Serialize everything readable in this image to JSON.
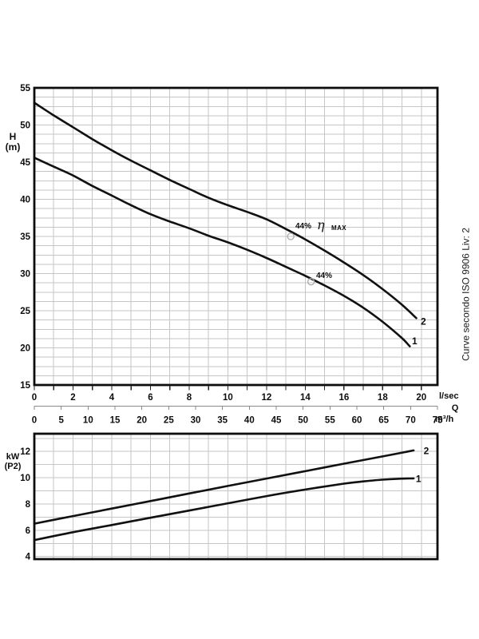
{
  "iso_note": "Curve secondo ISO 9906 Liv: 2",
  "head_chart": {
    "y_title_1": "H",
    "y_title_2": "(m)",
    "x_unit_primary": "l/sec",
    "x_quantity": "Q",
    "x_unit_secondary": "m³/h",
    "annotations": {
      "eff2_value": "44%",
      "eff2_symbol": "η",
      "eff2_suffix": "MAX",
      "eff1_value": "44%"
    }
  },
  "power_chart": {
    "y_title_1": "kW",
    "y_title_2": "(P2)"
  },
  "colors": {
    "curve": "#111111",
    "grid": "#c6c6c6",
    "border": "#0d0d0d",
    "marker": "#ababab",
    "ruler": "#8a8a8a"
  },
  "chart_data": [
    {
      "type": "line",
      "ylabel": "H (m)",
      "ylim": [
        15,
        55
      ],
      "y_ticks": [
        55,
        50,
        45,
        40,
        35,
        30,
        25,
        20,
        15
      ],
      "y_grid": {
        "start": 16.25,
        "step": 1.25,
        "end": 53.75
      },
      "x_unit": "l/sec",
      "x_quantity": "Q",
      "x_unit_secondary": "m³/h",
      "xlim_lsec": [
        0,
        20.833
      ],
      "x_ticks_lsec": [
        0,
        2,
        4,
        6,
        8,
        10,
        12,
        14,
        16,
        18,
        20
      ],
      "x_ticks_m3h": [
        0,
        5,
        10,
        15,
        20,
        25,
        30,
        35,
        40,
        45,
        50,
        55,
        60,
        65,
        70,
        75
      ],
      "grid": true,
      "series": [
        {
          "name": "1",
          "points": [
            [
              0,
              45.6
            ],
            [
              1,
              44.4
            ],
            [
              2,
              43.2
            ],
            [
              3,
              41.8
            ],
            [
              4,
              40.5
            ],
            [
              5,
              39.2
            ],
            [
              6,
              38.0
            ],
            [
              7,
              37.0
            ],
            [
              8,
              36.1
            ],
            [
              9,
              35.1
            ],
            [
              10,
              34.2
            ],
            [
              11,
              33.2
            ],
            [
              12,
              32.1
            ],
            [
              13,
              30.9
            ],
            [
              14,
              29.7
            ],
            [
              15,
              28.4
            ],
            [
              16,
              27.0
            ],
            [
              17,
              25.4
            ],
            [
              18,
              23.5
            ],
            [
              19,
              21.3
            ],
            [
              19.4,
              20.2
            ]
          ],
          "label_at": [
            19.35,
            20.9
          ]
        },
        {
          "name": "2",
          "points": [
            [
              0,
              53.0
            ],
            [
              1,
              51.3
            ],
            [
              2,
              49.7
            ],
            [
              3,
              48.1
            ],
            [
              4,
              46.6
            ],
            [
              5,
              45.2
            ],
            [
              6,
              43.9
            ],
            [
              7,
              42.6
            ],
            [
              8,
              41.4
            ],
            [
              9,
              40.2
            ],
            [
              10,
              39.2
            ],
            [
              11,
              38.3
            ],
            [
              12,
              37.3
            ],
            [
              13,
              36.0
            ],
            [
              14,
              34.6
            ],
            [
              15,
              33.1
            ],
            [
              16,
              31.5
            ],
            [
              17,
              29.8
            ],
            [
              18,
              27.9
            ],
            [
              19,
              25.8
            ],
            [
              19.74,
              24.0
            ]
          ],
          "label_at": [
            19.8,
            23.55
          ]
        }
      ],
      "annotations": [
        {
          "series": "2",
          "at": [
            13.25,
            35.0
          ],
          "label": "44% η MAX"
        },
        {
          "series": "1",
          "at": [
            14.3,
            28.9
          ],
          "label": "44%"
        }
      ]
    },
    {
      "type": "line",
      "ylabel": "kW (P2)",
      "ylim": [
        3.8,
        13.35
      ],
      "y_ticks": [
        12,
        10,
        8,
        6,
        4
      ],
      "y_grid": {
        "start": 4,
        "step": 1,
        "end": 13
      },
      "xlim_lsec": [
        0,
        20.833
      ],
      "grid": true,
      "series": [
        {
          "name": "1",
          "points": [
            [
              0,
              5.25
            ],
            [
              2,
              5.85
            ],
            [
              4,
              6.4
            ],
            [
              6,
              6.95
            ],
            [
              8,
              7.5
            ],
            [
              10,
              8.05
            ],
            [
              12,
              8.6
            ],
            [
              14,
              9.1
            ],
            [
              16,
              9.55
            ],
            [
              17,
              9.72
            ],
            [
              18,
              9.85
            ],
            [
              19,
              9.93
            ],
            [
              19.6,
              9.95
            ]
          ],
          "label_at": [
            19.55,
            9.9
          ]
        },
        {
          "name": "2",
          "points": [
            [
              0,
              6.5
            ],
            [
              2,
              7.08
            ],
            [
              4,
              7.65
            ],
            [
              6,
              8.22
            ],
            [
              8,
              8.8
            ],
            [
              10,
              9.37
            ],
            [
              12,
              9.94
            ],
            [
              14,
              10.5
            ],
            [
              16,
              11.07
            ],
            [
              18,
              11.62
            ],
            [
              19.6,
              12.08
            ]
          ],
          "label_at": [
            19.95,
            12.05
          ]
        }
      ]
    }
  ]
}
